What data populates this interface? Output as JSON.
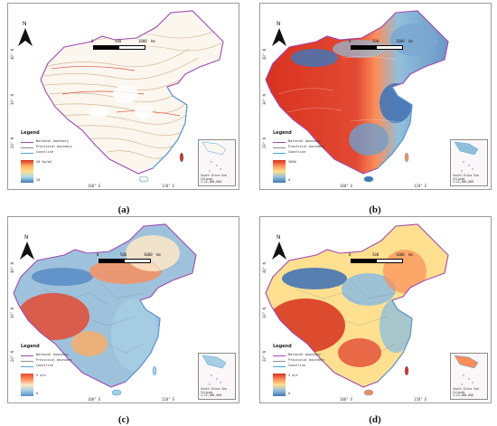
{
  "panels": [
    {
      "caption": "(a)",
      "legend_title": "Legend",
      "legend_lines": [
        "National boundary",
        "Provincial boundary",
        "Coastline"
      ],
      "ramp_high": "20 Gm/m2",
      "ramp_low": "20",
      "scale": {
        "zero": "0",
        "mid": "500",
        "end": "1000",
        "unit": "km"
      },
      "lat_labels": [
        "40° N",
        "30° N",
        "20° N"
      ],
      "lon_labels": [
        "100° E",
        "120° E"
      ],
      "inset_text": [
        "South China Sea Islands",
        "1:22,000,000"
      ],
      "north_label": "N",
      "color_scheme": "sparse-red-blue",
      "ramp_colors": [
        "#d7301f",
        "#fdae61",
        "#fee090",
        "#abd9e9",
        "#4575b4"
      ]
    },
    {
      "caption": "(b)",
      "legend_title": "Legend",
      "legend_lines": [
        "National boundary",
        "Provincial boundary",
        "Coastline"
      ],
      "ramp_high": "5000",
      "ramp_low": "0",
      "scale": {
        "zero": "0",
        "mid": "500",
        "end": "1000",
        "unit": "km"
      },
      "lat_labels": [
        "40° N",
        "30° N",
        "20° N"
      ],
      "lon_labels": [
        "100° E",
        "120° E"
      ],
      "inset_text": [
        "South China Sea Islands",
        "1:22,000,000"
      ],
      "north_label": "N",
      "color_scheme": "elevation",
      "ramp_colors": [
        "#d7301f",
        "#fc8d59",
        "#fee090",
        "#91bfdb",
        "#4575b4"
      ]
    },
    {
      "caption": "(c)",
      "legend_title": "Legend",
      "legend_lines": [
        "National boundary",
        "Provincial boundary",
        "Coastline"
      ],
      "ramp_high": "5 m/s",
      "ramp_low": "0",
      "scale": {
        "zero": "0",
        "mid": "500",
        "end": "1000",
        "unit": "km"
      },
      "lat_labels": [
        "40° N",
        "30° N",
        "20° N"
      ],
      "lon_labels": [
        "100° E",
        "120° E"
      ],
      "inset_text": [
        "South China Sea Islands",
        "1:22,000,000"
      ],
      "north_label": "N",
      "color_scheme": "wind",
      "ramp_colors": [
        "#e34a33",
        "#fc8d59",
        "#fee8c8",
        "#a6cee3",
        "#5b8fc7"
      ]
    },
    {
      "caption": "(d)",
      "legend_title": "Legend",
      "legend_lines": [
        "National boundary",
        "Provincial boundary",
        "Coastline"
      ],
      "ramp_high": "5 m/s",
      "ramp_low": "0",
      "scale": {
        "zero": "0",
        "mid": "500",
        "end": "1000",
        "unit": "km"
      },
      "lat_labels": [
        "40° N",
        "30° N",
        "20° N"
      ],
      "lon_labels": [
        "100° E",
        "120° E"
      ],
      "inset_text": [
        "South China Sea Islands",
        "1:22,000,000"
      ],
      "north_label": "N",
      "color_scheme": "wind2",
      "ramp_colors": [
        "#d7301f",
        "#fc8d59",
        "#fee090",
        "#91bfdb",
        "#4575b4"
      ]
    }
  ],
  "colors": {
    "national_boundary": "#a04ab0",
    "provincial_boundary": "#8c8c8c",
    "coastline": "#4aa3d8"
  }
}
